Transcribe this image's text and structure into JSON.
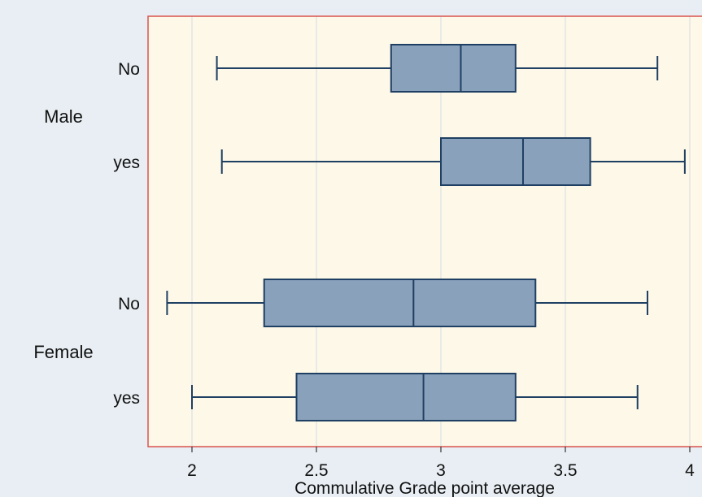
{
  "chart_data": {
    "type": "boxplot",
    "orientation": "horizontal",
    "xlabel": "Commulative Grade point average",
    "xlim": [
      1.84,
      4.02
    ],
    "xticks": [
      {
        "value": 2,
        "label": "2"
      },
      {
        "value": 2.5,
        "label": "2.5"
      },
      {
        "value": 3,
        "label": "3"
      },
      {
        "value": 3.5,
        "label": "3.5"
      },
      {
        "value": 4,
        "label": "4"
      }
    ],
    "grid": true,
    "colors": {
      "plot_background": "#fdf8e7",
      "outer_background": "#e8eef3",
      "box_fill": "#8aa1bb",
      "box_stroke": "#1f3f63",
      "plot_border": "#d9534f",
      "grid": "#d5dde4"
    },
    "groups": [
      {
        "name": "Male",
        "boxes": [
          {
            "label": "No",
            "min": 2.1,
            "q1": 2.8,
            "median": 3.08,
            "q3": 3.3,
            "max": 3.87
          },
          {
            "label": "yes",
            "min": 2.12,
            "q1": 3.0,
            "median": 3.33,
            "q3": 3.6,
            "max": 3.98
          }
        ]
      },
      {
        "name": "Female",
        "boxes": [
          {
            "label": "No",
            "min": 1.9,
            "q1": 2.29,
            "median": 2.89,
            "q3": 3.38,
            "max": 3.83
          },
          {
            "label": "yes",
            "min": 2.0,
            "q1": 2.42,
            "median": 2.93,
            "q3": 3.3,
            "max": 3.79
          }
        ]
      }
    ]
  }
}
